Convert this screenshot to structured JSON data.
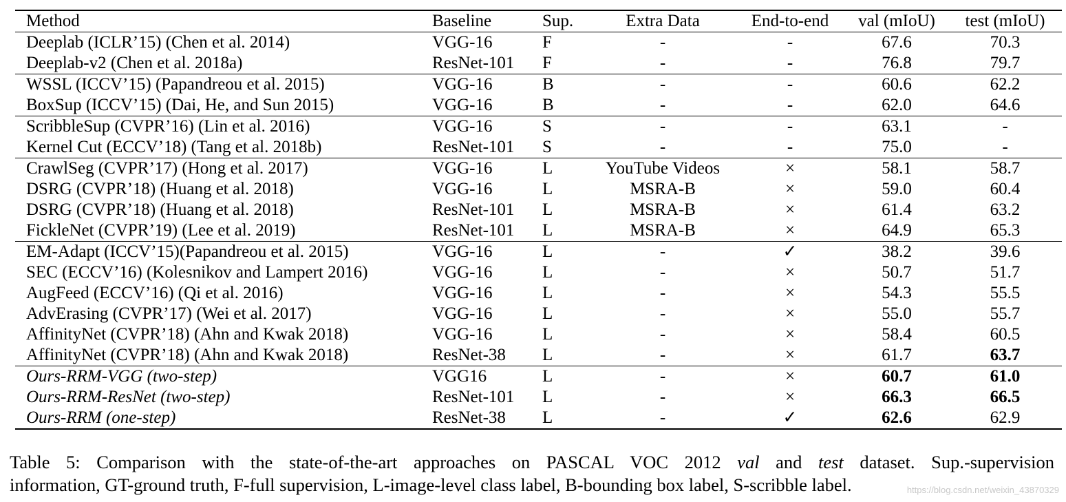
{
  "table": {
    "columns": [
      "Method",
      "Baseline",
      "Sup.",
      "Extra Data",
      "End-to-end",
      "val (mIoU)",
      "test (mIoU)"
    ],
    "rows": [
      {
        "method": "Deeplab (ICLR’15) (Chen et al. 2014)",
        "baseline": "VGG-16",
        "sup": "F",
        "extra": "-",
        "e2e": "-",
        "val": "67.6",
        "test": "70.3",
        "group_start": false
      },
      {
        "method": "Deeplab-v2 (Chen et al. 2018a)",
        "baseline": "ResNet-101",
        "sup": "F",
        "extra": "-",
        "e2e": "-",
        "val": "76.8",
        "test": "79.7",
        "group_start": false
      },
      {
        "method": "WSSL (ICCV’15) (Papandreou et al. 2015)",
        "baseline": "VGG-16",
        "sup": "B",
        "extra": "-",
        "e2e": "-",
        "val": "60.6",
        "test": "62.2",
        "group_start": true
      },
      {
        "method": "BoxSup (ICCV’15) (Dai, He, and Sun 2015)",
        "baseline": "VGG-16",
        "sup": "B",
        "extra": "-",
        "e2e": "-",
        "val": "62.0",
        "test": "64.6",
        "group_start": false
      },
      {
        "method": "ScribbleSup (CVPR’16) (Lin et al. 2016)",
        "baseline": "VGG-16",
        "sup": "S",
        "extra": "-",
        "e2e": "-",
        "val": "63.1",
        "test": "-",
        "group_start": true
      },
      {
        "method": "Kernel Cut (ECCV’18) (Tang et al. 2018b)",
        "baseline": "ResNet-101",
        "sup": "S",
        "extra": "-",
        "e2e": "-",
        "val": "75.0",
        "test": "-",
        "group_start": false
      },
      {
        "method": "CrawlSeg (CVPR’17) (Hong et al. 2017)",
        "baseline": "VGG-16",
        "sup": "L",
        "extra": "YouTube Videos",
        "e2e": "×",
        "val": "58.1",
        "test": "58.7",
        "group_start": true
      },
      {
        "method": "DSRG (CVPR’18) (Huang et al. 2018)",
        "baseline": "VGG-16",
        "sup": "L",
        "extra": "MSRA-B",
        "e2e": "×",
        "val": "59.0",
        "test": "60.4",
        "group_start": false
      },
      {
        "method": "DSRG (CVPR’18) (Huang et al. 2018)",
        "baseline": "ResNet-101",
        "sup": "L",
        "extra": "MSRA-B",
        "e2e": "×",
        "val": "61.4",
        "test": "63.2",
        "group_start": false
      },
      {
        "method": "FickleNet (CVPR’19) (Lee et al. 2019)",
        "baseline": "ResNet-101",
        "sup": "L",
        "extra": "MSRA-B",
        "e2e": "×",
        "val": "64.9",
        "test": "65.3",
        "group_start": false
      },
      {
        "method": "EM-Adapt (ICCV’15)(Papandreou et al. 2015)",
        "baseline": "VGG-16",
        "sup": "L",
        "extra": "-",
        "e2e": "✓",
        "val": "38.2",
        "test": "39.6",
        "group_start": true
      },
      {
        "method": "SEC (ECCV’16) (Kolesnikov and Lampert 2016)",
        "baseline": "VGG-16",
        "sup": "L",
        "extra": "-",
        "e2e": "×",
        "val": "50.7",
        "test": "51.7",
        "group_start": false
      },
      {
        "method": "AugFeed (ECCV’16) (Qi et al. 2016)",
        "baseline": "VGG-16",
        "sup": "L",
        "extra": "-",
        "e2e": "×",
        "val": "54.3",
        "test": "55.5",
        "group_start": false
      },
      {
        "method": "AdvErasing (CVPR’17) (Wei et al. 2017)",
        "baseline": "VGG-16",
        "sup": "L",
        "extra": "-",
        "e2e": "×",
        "val": "55.0",
        "test": "55.7",
        "group_start": false
      },
      {
        "method": "AffinityNet (CVPR’18) (Ahn and Kwak 2018)",
        "baseline": "VGG-16",
        "sup": "L",
        "extra": "-",
        "e2e": "×",
        "val": "58.4",
        "test": "60.5",
        "group_start": false
      },
      {
        "method": "AffinityNet (CVPR’18) (Ahn and Kwak 2018)",
        "baseline": "ResNet-38",
        "sup": "L",
        "extra": "-",
        "e2e": "×",
        "val": "61.7",
        "test": "63.7",
        "group_start": false,
        "test_bold": true
      },
      {
        "method": "Ours-RRM-VGG (two-step)",
        "baseline": "VGG16",
        "sup": "L",
        "extra": "-",
        "e2e": "×",
        "val": "60.7",
        "test": "61.0",
        "group_start": true,
        "ours": true,
        "val_bold": true,
        "test_bold": true
      },
      {
        "method": "Ours-RRM-ResNet (two-step)",
        "baseline": "ResNet-101",
        "sup": "L",
        "extra": "-",
        "e2e": "×",
        "val": "66.3",
        "test": "66.5",
        "group_start": false,
        "ours": true,
        "val_bold": true,
        "test_bold": true
      },
      {
        "method": "Ours-RRM (one-step)",
        "baseline": "ResNet-38",
        "sup": "L",
        "extra": "-",
        "e2e": "✓",
        "val": "62.6",
        "test": "62.9",
        "group_start": false,
        "ours": true,
        "val_bold": true
      }
    ]
  },
  "caption": {
    "label": "Table 5:",
    "text_1": " Comparison with the state-of-the-art approaches on PASCAL VOC 2012 ",
    "italic_1": "val",
    "text_2": " and ",
    "italic_2": "test",
    "text_3": " dataset. Sup.-supervision",
    "line_2": "information, GT-ground truth, F-full supervision, L-image-level class label, B-bounding box label, S-scribble label."
  },
  "watermark": "https://blog.csdn.net/weixin_43870329"
}
